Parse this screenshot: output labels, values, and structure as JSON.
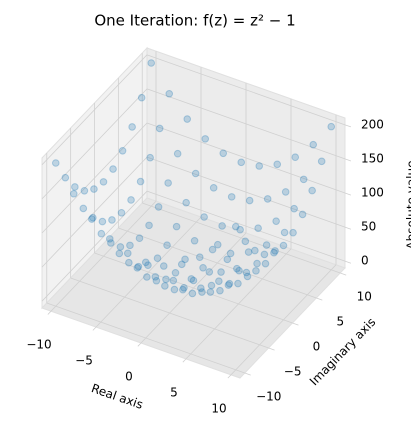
{
  "chart_data": {
    "type": "scatter3d",
    "title": "One Iteration: f(z) = z² − 1",
    "xlabel": "Real axis",
    "ylabel": "Imaginary axis",
    "zlabel": "Absolute value",
    "color": "#1f77b4",
    "x": [
      -10,
      -8,
      -6,
      -4,
      -2,
      0,
      2,
      4,
      6,
      8,
      10
    ],
    "y": [
      -10,
      -8,
      -6,
      -4,
      -2,
      0,
      2,
      4,
      6,
      8,
      10
    ],
    "z": [
      [
        200.0,
        163.78,
        135.53,
        115.28,
        103.08,
        99,
        103.08,
        115.28,
        135.53,
        163.78,
        200.0
      ],
      [
        164.22,
        128.0,
        99.72,
        79.4,
        67.12,
        63,
        67.12,
        79.4,
        99.72,
        128.0,
        164.22
      ],
      [
        136.47,
        100.28,
        72.01,
        51.62,
        39.2,
        35,
        39.2,
        51.62,
        72.01,
        100.28,
        136.47
      ],
      [
        116.73,
        80.6,
        52.39,
        32.02,
        19.42,
        15,
        19.42,
        32.02,
        52.39,
        80.6,
        116.73
      ],
      [
        104.92,
        68.88,
        40.8,
        20.62,
        8.06,
        3,
        8.06,
        20.62,
        40.8,
        68.88,
        104.92
      ],
      [
        101,
        65,
        37,
        17,
        5,
        1,
        5,
        17,
        37,
        65,
        101
      ],
      [
        104.92,
        68.88,
        40.8,
        20.62,
        8.06,
        3,
        8.06,
        20.62,
        40.8,
        68.88,
        104.92
      ],
      [
        116.73,
        80.6,
        52.39,
        32.02,
        19.42,
        15,
        19.42,
        32.02,
        52.39,
        80.6,
        116.73
      ],
      [
        136.47,
        100.28,
        72.01,
        51.62,
        39.2,
        35,
        39.2,
        51.62,
        72.01,
        100.28,
        136.47
      ],
      [
        164.22,
        128.0,
        99.72,
        79.4,
        67.12,
        63,
        67.12,
        79.4,
        99.72,
        128.0,
        164.22
      ],
      [
        200.0,
        163.78,
        135.53,
        115.28,
        103.08,
        99,
        103.08,
        115.28,
        135.53,
        163.78,
        200.0
      ]
    ],
    "xlim": [
      -11,
      11
    ],
    "ylim": [
      -11,
      11
    ],
    "zlim": [
      -10,
      210
    ],
    "xticks": [
      {
        "value": -10,
        "label": "−10"
      },
      {
        "value": -5,
        "label": "−5"
      },
      0,
      5,
      10
    ],
    "yticks": [
      {
        "value": -10,
        "label": "−10"
      },
      {
        "value": -5,
        "label": "−5"
      },
      0,
      5,
      10
    ],
    "zticks": [
      0,
      50,
      100,
      150,
      200
    ],
    "grid": true
  }
}
